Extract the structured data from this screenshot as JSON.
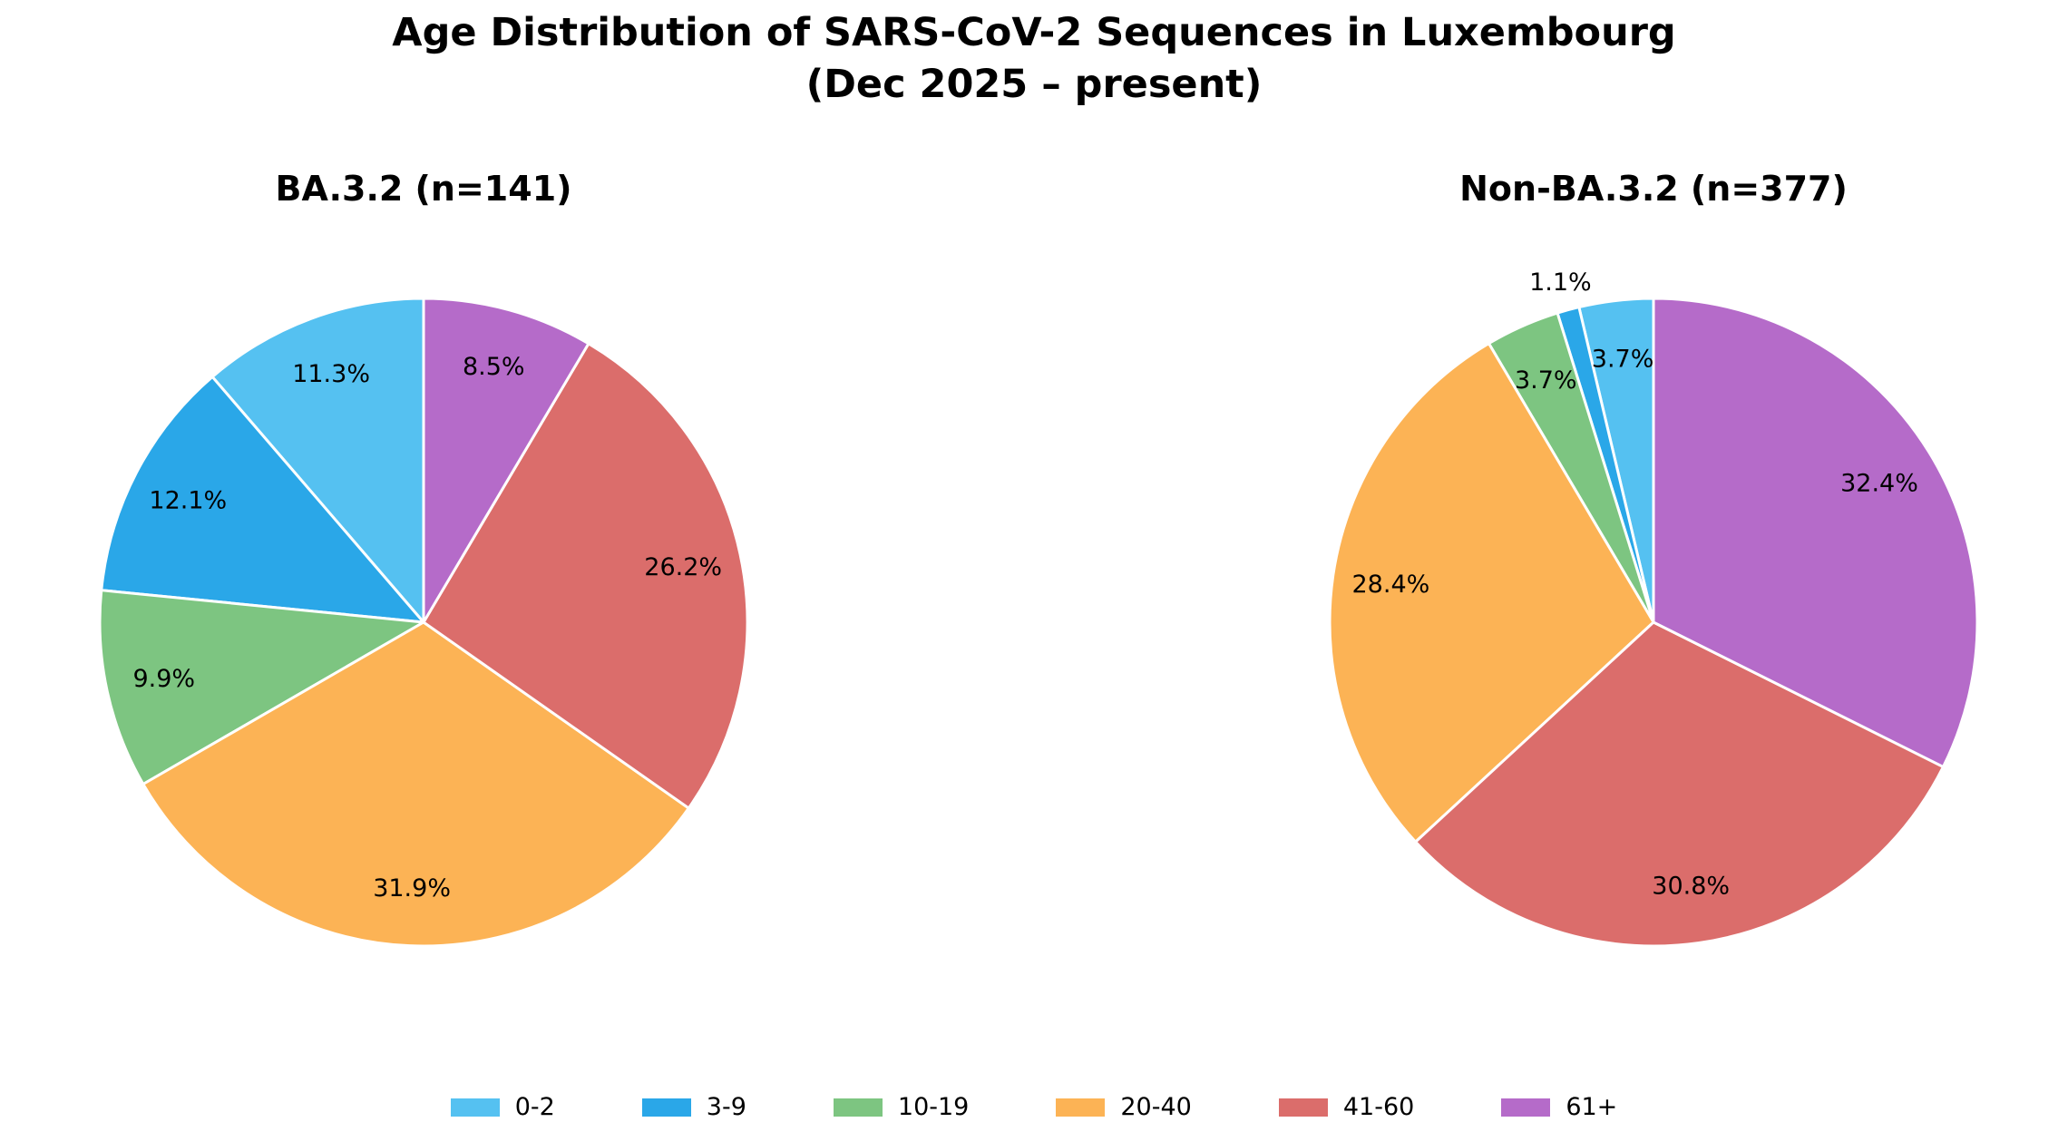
{
  "title": {
    "line1": "Age Distribution of SARS-CoV-2 Sequences in Luxembourg",
    "line2": "(Dec 2025 – present)"
  },
  "chart_data": {
    "type": "pie",
    "categories": [
      "0-2",
      "3-9",
      "10-19",
      "20-40",
      "41-60",
      "61+"
    ],
    "colors": [
      "#55C1F1",
      "#2AA7E8",
      "#7DC581",
      "#FCB355",
      "#DB6D6B",
      "#B56BC9"
    ],
    "start_angle": 90,
    "direction": "counterclockwise",
    "legend_position": "bottom",
    "pies": [
      {
        "title": "BA.3.2 (n=141)",
        "n": 141,
        "values": [
          11.3,
          12.1,
          9.9,
          31.9,
          26.2,
          8.5
        ],
        "percent_labels": [
          "11.3%",
          "12.1%",
          "9.9%",
          "31.9%",
          "26.2%",
          "8.5%"
        ]
      },
      {
        "title": "Non-BA.3.2 (n=377)",
        "n": 377,
        "values": [
          3.7,
          1.1,
          3.7,
          28.4,
          30.8,
          32.4
        ],
        "percent_labels": [
          "3.7%",
          "1.1%",
          "3.7%",
          "28.4%",
          "30.8%",
          "32.4%"
        ]
      }
    ]
  }
}
